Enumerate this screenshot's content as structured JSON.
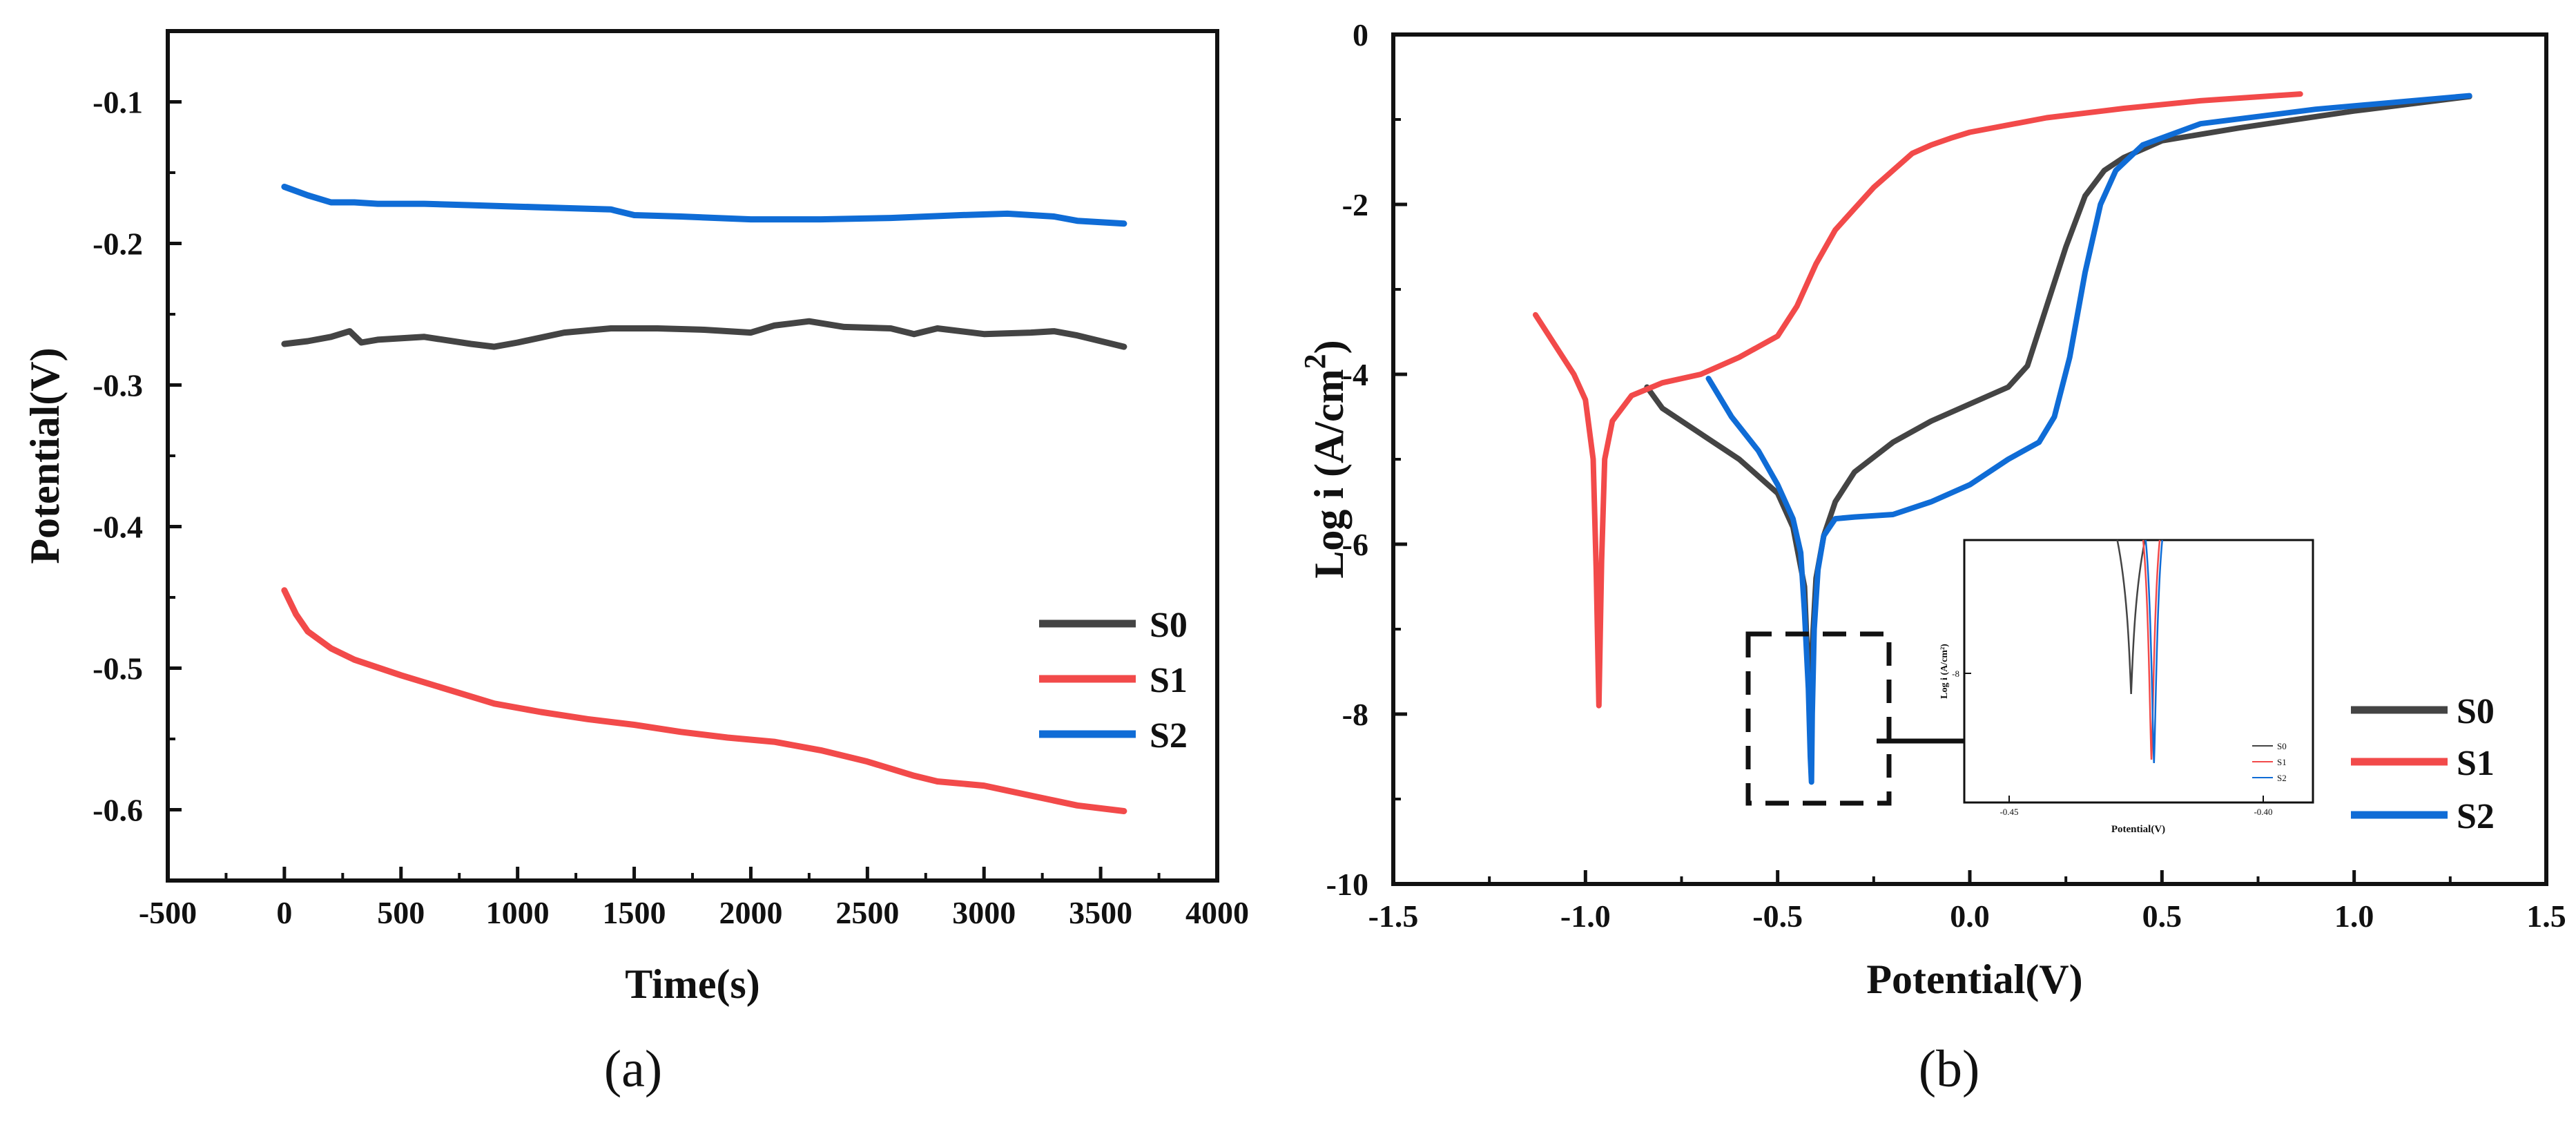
{
  "colors": {
    "S0": "#444444",
    "S1": "#f24a4a",
    "S2": "#0f6cd6"
  },
  "chart_data": [
    {
      "type": "line",
      "panel": "(a)",
      "xlabel": "Time(s)",
      "ylabel": "Potential(V)",
      "xlim": [
        -500,
        4000
      ],
      "ylim": [
        -0.65,
        -0.05
      ],
      "xticks": [
        -500,
        0,
        500,
        1000,
        1500,
        2000,
        2500,
        3000,
        3500,
        4000
      ],
      "xtick_labels": [
        "-500",
        "0",
        "500",
        "1000",
        "1500",
        "2000",
        "2500",
        "3000",
        "3500",
        "4000"
      ],
      "yticks": [
        -0.1,
        -0.2,
        -0.3,
        -0.4,
        -0.5,
        -0.6
      ],
      "ytick_labels": [
        "-0.1",
        "-0.2",
        "-0.3",
        "-0.4",
        "-0.5",
        "-0.6"
      ],
      "legend": [
        "S0",
        "S1",
        "S2"
      ],
      "legend_position": "lower-right",
      "series": [
        {
          "name": "S0",
          "x": [
            0,
            100,
            200,
            280,
            330,
            400,
            600,
            800,
            900,
            1000,
            1200,
            1400,
            1600,
            1800,
            2000,
            2100,
            2250,
            2400,
            2600,
            2700,
            2800,
            3000,
            3200,
            3300,
            3400,
            3600
          ],
          "y": [
            -0.271,
            -0.269,
            -0.266,
            -0.262,
            -0.27,
            -0.268,
            -0.266,
            -0.271,
            -0.273,
            -0.27,
            -0.263,
            -0.26,
            -0.26,
            -0.261,
            -0.263,
            -0.258,
            -0.255,
            -0.259,
            -0.26,
            -0.264,
            -0.26,
            -0.264,
            -0.263,
            -0.262,
            -0.265,
            -0.273
          ]
        },
        {
          "name": "S1",
          "x": [
            0,
            50,
            100,
            200,
            300,
            500,
            700,
            900,
            1100,
            1300,
            1500,
            1700,
            1900,
            2100,
            2300,
            2500,
            2700,
            2800,
            3000,
            3200,
            3400,
            3600
          ],
          "y": [
            -0.445,
            -0.462,
            -0.474,
            -0.486,
            -0.494,
            -0.505,
            -0.515,
            -0.525,
            -0.531,
            -0.536,
            -0.54,
            -0.545,
            -0.549,
            -0.552,
            -0.558,
            -0.566,
            -0.576,
            -0.58,
            -0.583,
            -0.59,
            -0.597,
            -0.601
          ]
        },
        {
          "name": "S2",
          "x": [
            0,
            100,
            200,
            300,
            400,
            600,
            800,
            1000,
            1200,
            1400,
            1500,
            1700,
            2000,
            2300,
            2600,
            2900,
            3100,
            3300,
            3400,
            3600
          ],
          "y": [
            -0.16,
            -0.166,
            -0.171,
            -0.171,
            -0.172,
            -0.172,
            -0.173,
            -0.174,
            -0.175,
            -0.176,
            -0.18,
            -0.181,
            -0.183,
            -0.183,
            -0.182,
            -0.18,
            -0.179,
            -0.181,
            -0.184,
            -0.186
          ]
        }
      ]
    },
    {
      "type": "line",
      "panel": "(b)",
      "xlabel": "Potential(V)",
      "ylabel_main": "Log i (A/cm",
      "ylabel_sup": "2",
      "ylabel_end": ")",
      "xlim": [
        -1.5,
        1.5
      ],
      "ylim": [
        -10,
        0
      ],
      "xticks": [
        -1.5,
        -1.0,
        -0.5,
        0.0,
        0.5,
        1.0,
        1.5
      ],
      "xtick_labels": [
        "-1.5",
        "-1.0",
        "-0.5",
        "0.0",
        "0.5",
        "1.0",
        "1.5"
      ],
      "yticks": [
        0,
        -2,
        -4,
        -6,
        -8,
        -10
      ],
      "ytick_labels": [
        "0",
        "-2",
        "-4",
        "-6",
        "-8",
        "-10"
      ],
      "legend": [
        "S0",
        "S1",
        "S2"
      ],
      "legend_position": "lower-right",
      "series": [
        {
          "name": "S0",
          "x": [
            -0.84,
            -0.8,
            -0.7,
            -0.6,
            -0.5,
            -0.46,
            -0.43,
            -0.42,
            -0.415,
            -0.41,
            -0.4,
            -0.38,
            -0.35,
            -0.3,
            -0.2,
            -0.1,
            0.0,
            0.1,
            0.15,
            0.2,
            0.25,
            0.3,
            0.35,
            0.4,
            0.5,
            0.7,
            1.0,
            1.3
          ],
          "y": [
            -4.15,
            -4.4,
            -4.7,
            -5.0,
            -5.4,
            -5.8,
            -6.5,
            -7.6,
            -8.3,
            -7.2,
            -6.4,
            -5.9,
            -5.5,
            -5.15,
            -4.8,
            -4.55,
            -4.35,
            -4.15,
            -3.9,
            -3.2,
            -2.5,
            -1.9,
            -1.6,
            -1.45,
            -1.25,
            -1.1,
            -0.9,
            -0.73
          ]
        },
        {
          "name": "S1",
          "x": [
            -1.13,
            -1.08,
            -1.03,
            -1.0,
            -0.98,
            -0.972,
            -0.965,
            -0.958,
            -0.95,
            -0.93,
            -0.88,
            -0.8,
            -0.7,
            -0.6,
            -0.5,
            -0.45,
            -0.4,
            -0.35,
            -0.3,
            -0.25,
            -0.2,
            -0.15,
            -0.1,
            -0.05,
            0.0,
            0.2,
            0.4,
            0.6,
            0.86
          ],
          "y": [
            -3.3,
            -3.65,
            -4.0,
            -4.3,
            -5.0,
            -6.3,
            -7.9,
            -6.2,
            -5.0,
            -4.55,
            -4.25,
            -4.1,
            -4.0,
            -3.8,
            -3.55,
            -3.2,
            -2.7,
            -2.3,
            -2.05,
            -1.8,
            -1.6,
            -1.4,
            -1.3,
            -1.22,
            -1.15,
            -0.98,
            -0.87,
            -0.78,
            -0.7
          ]
        },
        {
          "name": "S2",
          "x": [
            -0.68,
            -0.62,
            -0.55,
            -0.5,
            -0.46,
            -0.44,
            -0.43,
            -0.42,
            -0.415,
            -0.412,
            -0.41,
            -0.405,
            -0.395,
            -0.38,
            -0.35,
            -0.3,
            -0.2,
            -0.1,
            0.0,
            0.1,
            0.18,
            0.22,
            0.26,
            0.3,
            0.34,
            0.38,
            0.45,
            0.6,
            0.9,
            1.3
          ],
          "y": [
            -4.05,
            -4.5,
            -4.9,
            -5.3,
            -5.7,
            -6.1,
            -6.8,
            -7.7,
            -8.5,
            -8.8,
            -8.0,
            -7.0,
            -6.3,
            -5.9,
            -5.7,
            -5.68,
            -5.65,
            -5.5,
            -5.3,
            -5.0,
            -4.8,
            -4.5,
            -3.8,
            -2.8,
            -2.0,
            -1.6,
            -1.3,
            -1.05,
            -0.88,
            -0.72
          ]
        }
      ],
      "inset": {
        "xlabel": "Potential(V)",
        "ylabel": "Log i (A/cm²)",
        "xticks": [
          -0.45,
          -0.4
        ],
        "xtick_labels": [
          "-0.45",
          "-0.40"
        ],
        "ytick_labels": [
          "-8"
        ],
        "legend": [
          "S0",
          "S1",
          "S2"
        ],
        "dips": [
          {
            "name": "S0",
            "x": -0.426
          },
          {
            "name": "S1",
            "x": -0.422
          },
          {
            "name": "S2",
            "x": -0.4215
          }
        ]
      }
    }
  ],
  "panel_labels": [
    "(a)",
    "(b)"
  ]
}
